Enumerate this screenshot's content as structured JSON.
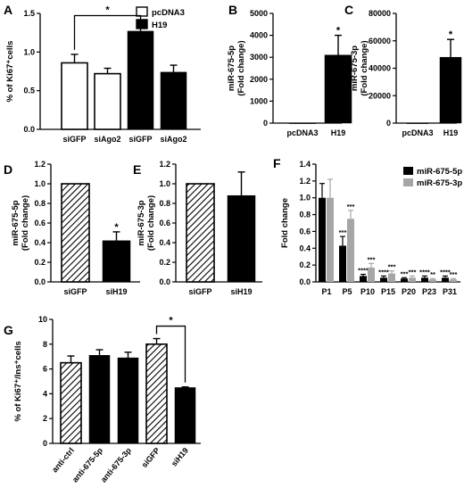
{
  "chart_data": [
    {
      "id": "A",
      "type": "bar",
      "panel_label": "A",
      "ylabel": "% of Ki67⁺cells",
      "ylim": [
        0,
        1.5
      ],
      "yticks": [
        0,
        0.5,
        1.0,
        1.5
      ],
      "categories": [
        "siGFP",
        "siAgo2",
        "siGFP",
        "siAgo2"
      ],
      "values": [
        0.86,
        0.72,
        1.27,
        0.74
      ],
      "errors": [
        0.11,
        0.07,
        0.04,
        0.09
      ],
      "fills": [
        "white",
        "white",
        "black",
        "black"
      ],
      "legend": [
        {
          "label": "pcDNA3",
          "fill": "white"
        },
        {
          "label": "H19",
          "fill": "black"
        }
      ],
      "legend_position": "top-right",
      "bracket": {
        "from": 0,
        "to": 2,
        "label": "*"
      }
    },
    {
      "id": "B",
      "type": "bar",
      "panel_label": "B",
      "ylabel": "miR-675-5p (Fold change)",
      "ylim": [
        0,
        5000
      ],
      "yticks": [
        0,
        1000,
        2000,
        3000,
        4000,
        5000
      ],
      "categories": [
        "pcDNA3",
        "H19"
      ],
      "values": [
        1,
        3100
      ],
      "errors": [
        0,
        900
      ],
      "fills": [
        "black",
        "black"
      ],
      "stars": [
        "",
        "*"
      ]
    },
    {
      "id": "C",
      "type": "bar",
      "panel_label": "C",
      "ylabel": "miR-675-3p (Fold change)",
      "ylim": [
        0,
        80000
      ],
      "yticks": [
        0,
        20000,
        40000,
        60000,
        80000
      ],
      "categories": [
        "pcDNA3",
        "H19"
      ],
      "values": [
        1,
        48000
      ],
      "errors": [
        0,
        13000
      ],
      "fills": [
        "black",
        "black"
      ],
      "stars": [
        "",
        "*"
      ]
    },
    {
      "id": "D",
      "type": "bar",
      "panel_label": "D",
      "ylabel": "miR-675-5p (Fold change)",
      "ylim": [
        0,
        1.2
      ],
      "yticks": [
        0,
        0.2,
        0.4,
        0.6,
        0.8,
        1.0,
        1.2
      ],
      "categories": [
        "siGFP",
        "siH19"
      ],
      "values": [
        1.0,
        0.42
      ],
      "errors": [
        0,
        0.09
      ],
      "fills": [
        "hatch",
        "black"
      ],
      "stars": [
        "",
        "*"
      ]
    },
    {
      "id": "E",
      "type": "bar",
      "panel_label": "E",
      "ylabel": "miR-675-3p (Fold change)",
      "ylim": [
        0,
        1.2
      ],
      "yticks": [
        0,
        0.2,
        0.4,
        0.6,
        0.8,
        1.0,
        1.2
      ],
      "categories": [
        "siGFP",
        "siH19"
      ],
      "values": [
        1.0,
        0.88
      ],
      "errors": [
        0,
        0.24
      ],
      "fills": [
        "hatch",
        "black"
      ],
      "stars": [
        "",
        ""
      ]
    },
    {
      "id": "F",
      "type": "bar",
      "panel_label": "F",
      "ylabel": "Fold change",
      "ylim": [
        0,
        1.4
      ],
      "yticks": [
        0,
        0.2,
        0.4,
        0.6,
        0.8,
        1.0,
        1.2,
        1.4
      ],
      "categories": [
        "P1",
        "P5",
        "P10",
        "P15",
        "P20",
        "P23",
        "P31"
      ],
      "series": [
        {
          "name": "miR-675-5p",
          "color": "#000000",
          "values": [
            1.0,
            0.43,
            0.07,
            0.05,
            0.04,
            0.05,
            0.05
          ],
          "errors": [
            0.17,
            0.11,
            0.02,
            0.02,
            0.01,
            0.02,
            0.02
          ],
          "stars": [
            "",
            "***",
            "****",
            "****",
            "***",
            "****",
            "****"
          ]
        },
        {
          "name": "miR-675-3p",
          "color": "#a6a6a6",
          "values": [
            1.0,
            0.75,
            0.17,
            0.1,
            0.05,
            0.03,
            0.03
          ],
          "errors": [
            0.22,
            0.1,
            0.05,
            0.03,
            0.02,
            0.01,
            0.01
          ],
          "stars": [
            "",
            "***",
            "***",
            "***",
            "***",
            "**",
            "***"
          ]
        }
      ],
      "legend_position": "top-right"
    },
    {
      "id": "G",
      "type": "bar",
      "panel_label": "G",
      "ylabel": "% of Ki67⁺/Ins⁺cells",
      "ylim": [
        0,
        10
      ],
      "yticks": [
        0,
        2,
        4,
        6,
        8,
        10
      ],
      "categories": [
        "anti-ctrl",
        "anti-675-5p",
        "anti-675-3p",
        "siGFP",
        "siH19"
      ],
      "values": [
        6.5,
        7.1,
        6.9,
        8.0,
        4.5
      ],
      "errors": [
        0.55,
        0.45,
        0.45,
        0.45,
        0.05
      ],
      "fills": [
        "hatch",
        "black",
        "black",
        "hatch",
        "black"
      ],
      "bracket": {
        "from": 3,
        "to": 4,
        "label": "*"
      }
    }
  ]
}
